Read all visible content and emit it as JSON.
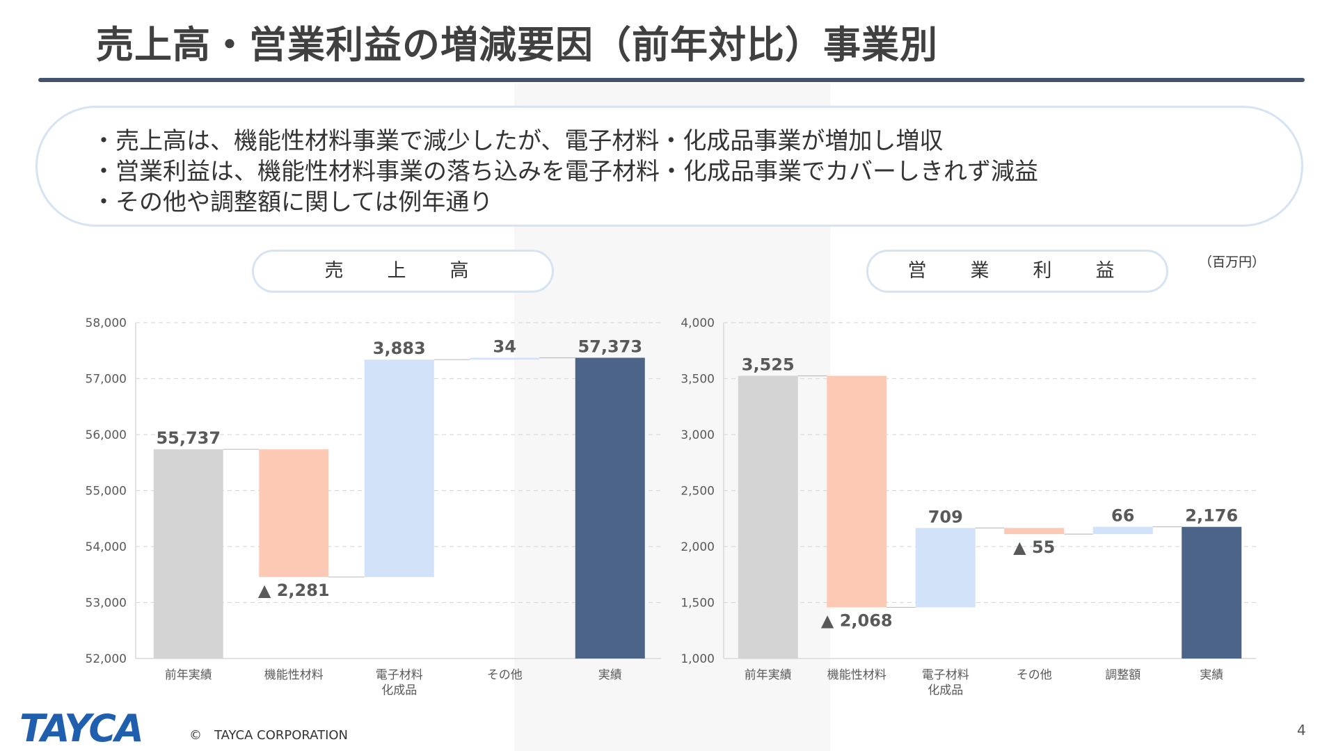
{
  "title": "売上高・営業利益の増減要因（前年対比）事業別",
  "summary": [
    "・売上高は、機能性材料事業で減少したが、電子材料・化成品事業が増加し増収",
    "・営業利益は、機能性材料事業の落ち込みを電子材料・化成品事業でカバーしきれず減益",
    "・その他や調整額に関しては例年通り"
  ],
  "unit": "（百万円）",
  "footer": {
    "logo": "TAYCA",
    "copyright": "©　TAYCA CORPORATION",
    "page": "4"
  },
  "colors": {
    "base": "#d4d4d4",
    "decrease": "#fcc9b5",
    "increase": "#d2e2f8",
    "result": "#4d6489",
    "text": "#595959"
  },
  "chart_data": [
    {
      "type": "bar",
      "subtype": "waterfall",
      "title": "売　上　高",
      "categories": [
        "前年実績",
        "機能性材料",
        "電子材料\n化成品",
        "その他",
        "実績"
      ],
      "values": [
        55737,
        -2281,
        3883,
        34,
        57373
      ],
      "kinds": [
        "total",
        "delta",
        "delta",
        "delta",
        "total"
      ],
      "data_labels": [
        "55,737",
        "▲ 2,281",
        "3,883",
        "34",
        "57,373"
      ],
      "ylim": [
        52000,
        58000
      ],
      "yticks": [
        52000,
        53000,
        54000,
        55000,
        56000,
        57000,
        58000
      ],
      "ytick_labels": [
        "52,000",
        "53,000",
        "54,000",
        "55,000",
        "56,000",
        "57,000",
        "58,000"
      ],
      "grid": true
    },
    {
      "type": "bar",
      "subtype": "waterfall",
      "title": "営　業　利　益",
      "categories": [
        "前年実績",
        "機能性材料",
        "電子材料\n化成品",
        "その他",
        "調整額",
        "実績"
      ],
      "values": [
        3525,
        -2068,
        709,
        -55,
        66,
        2176
      ],
      "kinds": [
        "total",
        "delta",
        "delta",
        "delta",
        "delta",
        "total"
      ],
      "data_labels": [
        "3,525",
        "▲ 2,068",
        "709",
        "▲ 55",
        "66",
        "2,176"
      ],
      "ylim": [
        1000,
        4000
      ],
      "yticks": [
        1000,
        1500,
        2000,
        2500,
        3000,
        3500,
        4000
      ],
      "ytick_labels": [
        "1,000",
        "1,500",
        "2,000",
        "2,500",
        "3,000",
        "3,500",
        "4,000"
      ],
      "grid": true
    }
  ]
}
